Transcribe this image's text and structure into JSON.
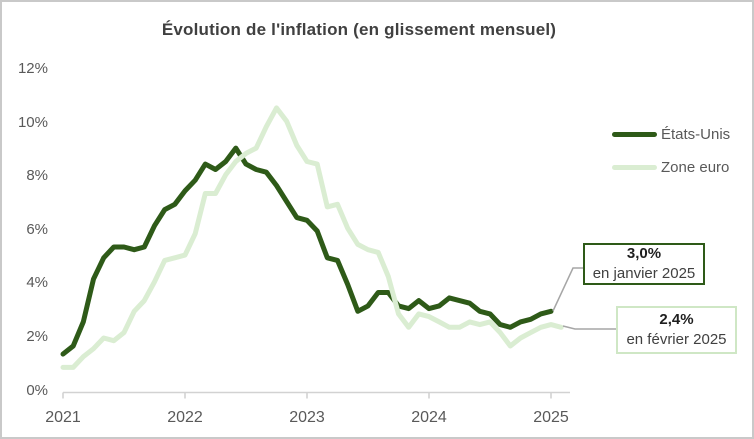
{
  "chart_data": {
    "type": "line",
    "title": "Évolution de l'inflation (en glissement mensuel)",
    "x_start": "2021-01",
    "x_interval": "month",
    "x_tick_labels": [
      "2021",
      "2022",
      "2023",
      "2024",
      "2025"
    ],
    "y_tick_labels": [
      "0%",
      "2%",
      "4%",
      "6%",
      "8%",
      "10%",
      "12%"
    ],
    "y_tick_values": [
      0,
      2,
      4,
      6,
      8,
      10,
      12
    ],
    "ylim": [
      0,
      12
    ],
    "grid": false,
    "legend_position": "upper-right",
    "series": [
      {
        "name": "États-Unis",
        "color": "#2e5a18",
        "values": [
          1.4,
          1.7,
          2.6,
          4.2,
          5.0,
          5.4,
          5.4,
          5.3,
          5.4,
          6.2,
          6.8,
          7.0,
          7.5,
          7.9,
          8.5,
          8.3,
          8.6,
          9.1,
          8.5,
          8.3,
          8.2,
          7.7,
          7.1,
          6.5,
          6.4,
          6.0,
          5.0,
          4.9,
          4.0,
          3.0,
          3.2,
          3.7,
          3.7,
          3.2,
          3.1,
          3.4,
          3.1,
          3.2,
          3.5,
          3.4,
          3.3,
          3.0,
          2.9,
          2.5,
          2.4,
          2.6,
          2.7,
          2.9,
          3.0
        ]
      },
      {
        "name": "Zone euro",
        "color": "#daedd2",
        "values": [
          0.9,
          0.9,
          1.3,
          1.6,
          2.0,
          1.9,
          2.2,
          3.0,
          3.4,
          4.1,
          4.9,
          5.0,
          5.1,
          5.9,
          7.4,
          7.4,
          8.1,
          8.6,
          8.9,
          9.1,
          9.9,
          10.6,
          10.1,
          9.2,
          8.6,
          8.5,
          6.9,
          7.0,
          6.1,
          5.5,
          5.3,
          5.2,
          4.3,
          2.9,
          2.4,
          2.9,
          2.8,
          2.6,
          2.4,
          2.4,
          2.6,
          2.5,
          2.6,
          2.2,
          1.7,
          2.0,
          2.2,
          2.4,
          2.5,
          2.4
        ]
      }
    ],
    "annotations": [
      {
        "series": "États-Unis",
        "value_label": "3,0%",
        "date_label": "en janvier 2025",
        "border_color": "#2e5a18"
      },
      {
        "series": "Zone euro",
        "value_label": "2,4%",
        "date_label": "en février 2025",
        "border_color": "#cfe7c5"
      }
    ]
  },
  "colors": {
    "axis_line": "#d2d2d2",
    "connector": "#a6a6a6",
    "axis_text": "#595959",
    "title_text": "#404040",
    "frame_border": "#c9c9c9"
  }
}
